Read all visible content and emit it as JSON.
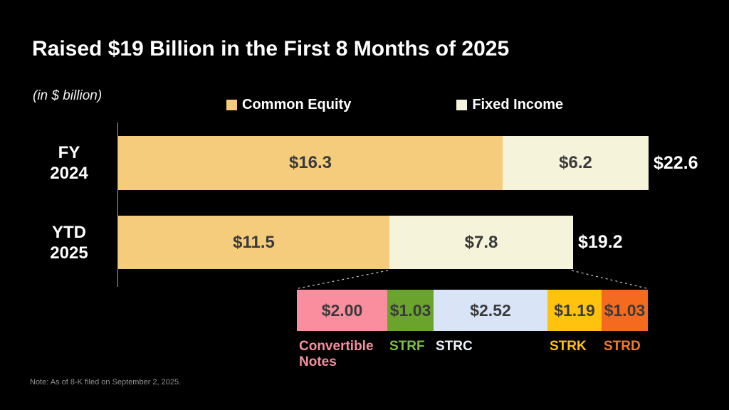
{
  "title": "Raised $19 Billion in the First 8 Months of 2025",
  "unit_label": "(in $ billion)",
  "note": "Note: As of 8-K filed on September 2, 2025.",
  "legend": [
    {
      "label": "Common Equity",
      "color": "#F5CB7C"
    },
    {
      "label": "Fixed Income",
      "color": "#F6F3DB"
    }
  ],
  "chart_data": {
    "type": "bar",
    "orientation": "horizontal",
    "stacked": true,
    "title": "Raised $19 Billion in the First 8 Months of 2025",
    "xlabel": "$ billion",
    "gridlines": false,
    "legend_position": "top",
    "categories": [
      "FY 2024",
      "YTD 2025"
    ],
    "series": [
      {
        "name": "Common Equity",
        "color": "#F5CB7C",
        "values": [
          16.3,
          11.5
        ]
      },
      {
        "name": "Fixed Income",
        "color": "#F6F3DB",
        "values": [
          6.2,
          7.8
        ]
      }
    ],
    "rows": [
      {
        "category_line1": "FY",
        "category_line2": "2024",
        "segments": [
          {
            "series": "Common Equity",
            "value": 16.3,
            "display": "$16.3"
          },
          {
            "series": "Fixed Income",
            "value": 6.2,
            "display": "$6.2"
          }
        ],
        "total": 22.6,
        "total_display": "$22.6"
      },
      {
        "category_line1": "YTD",
        "category_line2": "2025",
        "segments": [
          {
            "series": "Common Equity",
            "value": 11.5,
            "display": "$11.5"
          },
          {
            "series": "Fixed Income",
            "value": 7.8,
            "display": "$7.8"
          }
        ],
        "total": 19.2,
        "total_display": "$19.2"
      }
    ],
    "breakdown": {
      "parent": "YTD 2025 Fixed Income",
      "segments": [
        {
          "label": "Convertible Notes",
          "value": 2.0,
          "display": "$2.00",
          "color": "#FA8E9E",
          "label_color": "#F390A0"
        },
        {
          "label": "STRF",
          "value": 1.03,
          "display": "$1.03",
          "color": "#6BA42C",
          "label_color": "#7FC143"
        },
        {
          "label": "STRC",
          "value": 2.52,
          "display": "$2.52",
          "color": "#D9E5F6",
          "label_color": "#EDF2FB"
        },
        {
          "label": "STRK",
          "value": 1.19,
          "display": "$1.19",
          "color": "#FFC30D",
          "label_color": "#FFC30D"
        },
        {
          "label": "STRD",
          "value": 1.03,
          "display": "$1.03",
          "color": "#F46A1E",
          "label_color": "#F47B2A"
        }
      ]
    }
  }
}
